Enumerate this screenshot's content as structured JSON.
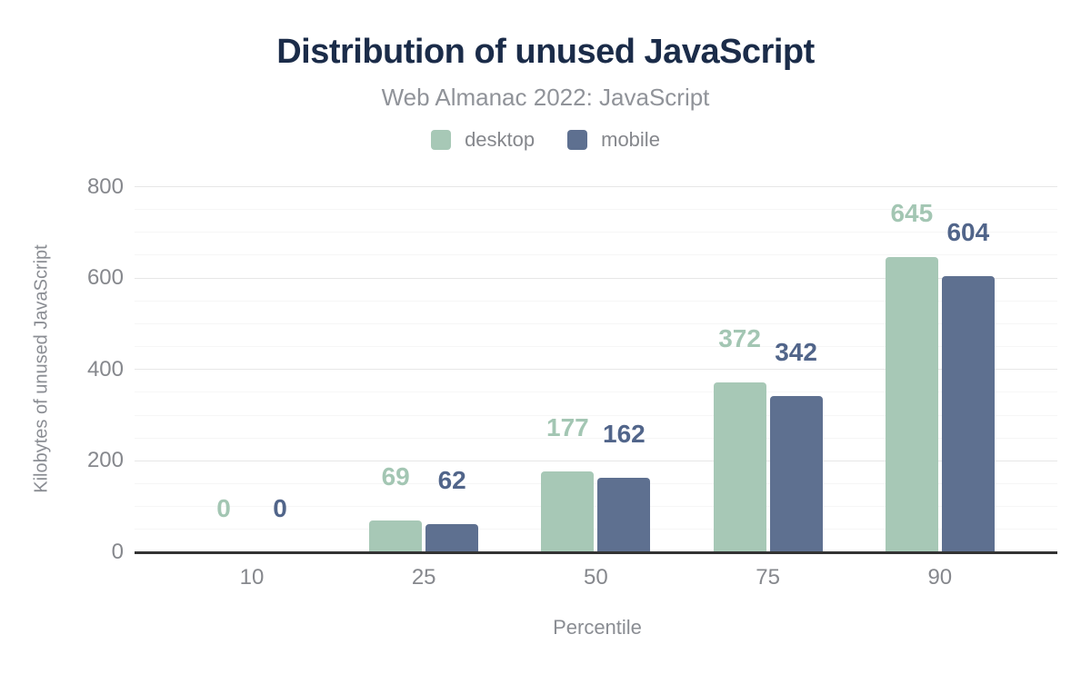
{
  "chart_data": {
    "type": "bar",
    "title": "Distribution of unused JavaScript",
    "subtitle": "Web Almanac 2022: JavaScript",
    "xlabel": "Percentile",
    "ylabel": "Kilobytes of unused JavaScript",
    "categories": [
      "10",
      "25",
      "50",
      "75",
      "90"
    ],
    "series": [
      {
        "name": "desktop",
        "color": "#a7c8b6",
        "label_color": "#a3c6b3",
        "values": [
          0,
          69,
          177,
          372,
          645
        ]
      },
      {
        "name": "mobile",
        "color": "#5e7090",
        "label_color": "#51658a",
        "values": [
          0,
          62,
          162,
          342,
          604
        ]
      }
    ],
    "y_ticks": [
      0,
      200,
      400,
      600,
      800
    ],
    "ylim": [
      0,
      800
    ],
    "minor_tick_step": 50,
    "grid": true,
    "legend_position": "top",
    "colors": {
      "title": "#1b2c49",
      "subtitle": "#909399",
      "axis_text": "#86888d",
      "axis_line": "#333333",
      "grid_major": "#e7e7e7",
      "grid_minor": "#f6f6f6",
      "background": "#ffffff"
    }
  }
}
